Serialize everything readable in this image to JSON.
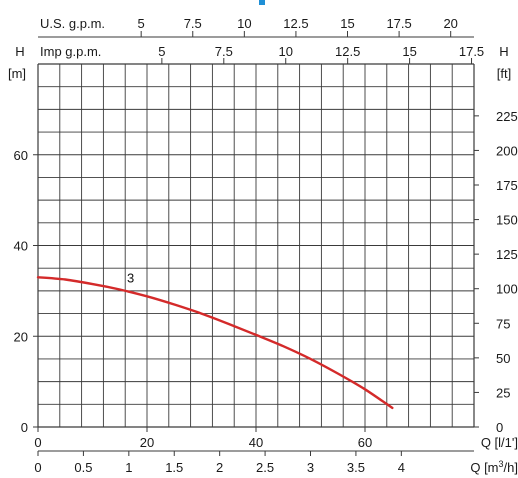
{
  "chart_data": {
    "type": "line",
    "colors": {
      "curve": "#d42a2a",
      "grid": "#3a3a3a",
      "accent": "#1f8fd6"
    },
    "grid": true,
    "axes": {
      "left": {
        "title_top": "H",
        "title_unit": "[m]",
        "ylim": [
          0,
          80
        ],
        "ticks": [
          0,
          20,
          40,
          60
        ]
      },
      "right": {
        "title_top": "H",
        "title_unit": "[ft]",
        "ylim": [
          0,
          262.5
        ],
        "ticks": [
          0,
          25,
          50,
          75,
          100,
          125,
          150,
          175,
          200,
          225
        ]
      },
      "bottom1": {
        "label": "Q [l/1']",
        "xlim": [
          0,
          80
        ],
        "ticks": [
          0,
          20,
          40,
          60
        ]
      },
      "bottom2": {
        "label": "Q [m³/h]",
        "xlim": [
          0,
          4.8
        ],
        "ticks": [
          0,
          0.5,
          1,
          1.5,
          2,
          2.5,
          3,
          3.5,
          4
        ]
      },
      "top_imp": {
        "label": "Imp g.p.m.",
        "xlim": [
          0,
          17.6
        ],
        "ticks": [
          5,
          7.5,
          10,
          12.5,
          15,
          17.5
        ]
      },
      "top_us": {
        "label": "U.S. g.p.m.",
        "xlim": [
          0,
          21.13
        ],
        "ticks": [
          5,
          7.5,
          10,
          12.5,
          15,
          17.5,
          20
        ]
      }
    },
    "series": [
      {
        "name": "3",
        "x": [
          0,
          5,
          10,
          15,
          20,
          25,
          30,
          35,
          40,
          45,
          50,
          55,
          60,
          65
        ],
        "y": [
          33,
          32.5,
          31.5,
          30.3,
          28.8,
          27,
          25,
          22.7,
          20.3,
          17.8,
          15,
          11.8,
          8.3,
          4.2
        ]
      }
    ]
  }
}
